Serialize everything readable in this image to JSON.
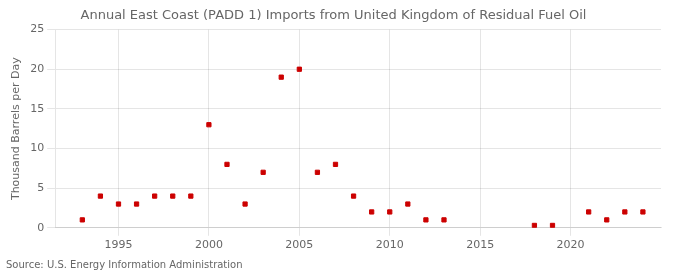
{
  "chart_data": {
    "type": "scatter",
    "title": "Annual East Coast (PADD 1) Imports from United Kingdom of Residual Fuel Oil",
    "ylabel": "Thousand Barrels per Day",
    "annotation": "Source: U.S. Energy Information Administration",
    "x": [
      1993,
      1994,
      1995,
      1996,
      1997,
      1998,
      1999,
      2000,
      2001,
      2002,
      2003,
      2004,
      2005,
      2006,
      2007,
      2008,
      2009,
      2010,
      2011,
      2012,
      2013,
      2018,
      2019,
      2021,
      2022,
      2023,
      2024
    ],
    "values": [
      1,
      4,
      3,
      3,
      4,
      4,
      4,
      13,
      8,
      3,
      7,
      19,
      20,
      7,
      8,
      4,
      2,
      2,
      3,
      1,
      1,
      0.3,
      0.3,
      2,
      1,
      2,
      2
    ],
    "color": "#cc0000",
    "marker": "square",
    "xlim": [
      1991.5,
      2025
    ],
    "xticks": [
      1995,
      2000,
      2005,
      2010,
      2015,
      2020
    ],
    "ylim": [
      0,
      25
    ],
    "yticks": [
      0,
      5,
      10,
      15,
      20,
      25
    ],
    "grid": true
  }
}
